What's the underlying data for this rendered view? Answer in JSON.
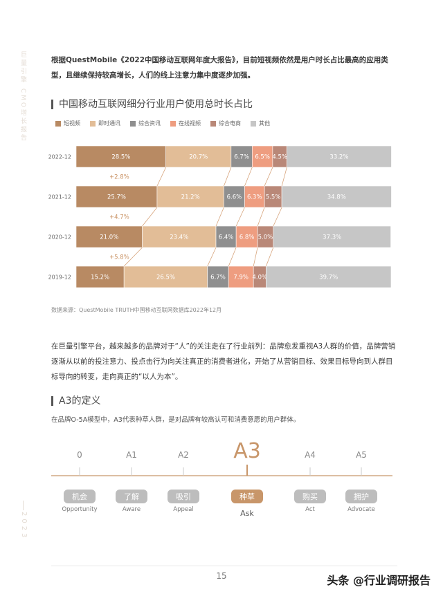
{
  "side": {
    "label": "巨量引擎 CMO增长报告",
    "year": "2023"
  },
  "intro": "根据QuestMobile《2022中国移动互联网年度大报告》，目前短视频依然是用户时长占比最高的应用类型，且继续保持较高增长，人们的线上注意力集中度逐步加强。",
  "chart_section_title": "中国移动互联网细分行业用户使用总时长占比",
  "chart_data": {
    "type": "bar",
    "orientation": "horizontal-stacked-100",
    "categories": [
      "2022-12",
      "2021-12",
      "2020-12",
      "2019-12"
    ],
    "series": [
      {
        "name": "短视频",
        "color": "#b88a63",
        "values": [
          28.5,
          25.7,
          21.0,
          15.2
        ]
      },
      {
        "name": "即时通讯",
        "color": "#e2bd97",
        "values": [
          20.7,
          21.2,
          23.4,
          26.5
        ]
      },
      {
        "name": "综合资讯",
        "color": "#8f8f8f",
        "values": [
          6.7,
          6.6,
          6.4,
          6.7
        ]
      },
      {
        "name": "在线视频",
        "color": "#ee9d80",
        "values": [
          6.5,
          6.3,
          6.8,
          7.9
        ]
      },
      {
        "name": "综合电商",
        "color": "#b98878",
        "values": [
          4.5,
          5.5,
          5.0,
          4.0
        ]
      },
      {
        "name": "其他",
        "color": "#c6c6c6",
        "values": [
          33.2,
          34.8,
          37.3,
          39.7
        ]
      }
    ],
    "value_labels": [
      [
        "28.5%",
        "20.7%",
        "6.7%",
        "6.5%",
        "4.5%",
        "33.2%"
      ],
      [
        "25.7%",
        "21.2%",
        "6.6%",
        "6.3%",
        "5.5%",
        "34.8%"
      ],
      [
        "21.0%",
        "23.4%",
        "6.4%",
        "6.8%",
        "5.0%",
        "37.3%"
      ],
      [
        "15.2%",
        "26.5%",
        "6.7%",
        "7.9%",
        "4.0%",
        "39.7%"
      ]
    ],
    "growth_labels": [
      "+2.8%",
      "+4.7%",
      "+5.8%"
    ],
    "growth_color": "#c89060"
  },
  "source": "数据来源：QuestMobile TRUTH中国移动互联网数据库2022年12月",
  "para2": "在巨量引擎平台，越来越多的品牌对于“人”的关注走在了行业前列：品牌愈发重视A3人群的价值，品牌营销逐渐从以前的投注意力、投点击行为向关注真正的消费者进化，开始了从营销目标、效果目标导向到人群目标导向的转变，走向真正的“以人为本”。",
  "def_section_title": "A3的定义",
  "def_text": "在品牌O-5A模型中，A3代表种草人群，是对品牌有较高认可和消费意愿的用户群体。",
  "timeline": [
    {
      "code": "0",
      "cn": "机会",
      "en": "Opportunity",
      "active": false
    },
    {
      "code": "A1",
      "cn": "了解",
      "en": "Aware",
      "active": false
    },
    {
      "code": "A2",
      "cn": "吸引",
      "en": "Appeal",
      "active": false
    },
    {
      "code": "A3",
      "cn": "种草",
      "en": "Ask",
      "active": true
    },
    {
      "code": "A4",
      "cn": "购买",
      "en": "Act",
      "active": false
    },
    {
      "code": "A5",
      "cn": "拥护",
      "en": "Advocate",
      "active": false
    }
  ],
  "timeline_colors": {
    "accent": "#c8966a",
    "inactive_pill": "#bdbdbd"
  },
  "page_number": "15",
  "watermark": "头条 @行业调研报告"
}
